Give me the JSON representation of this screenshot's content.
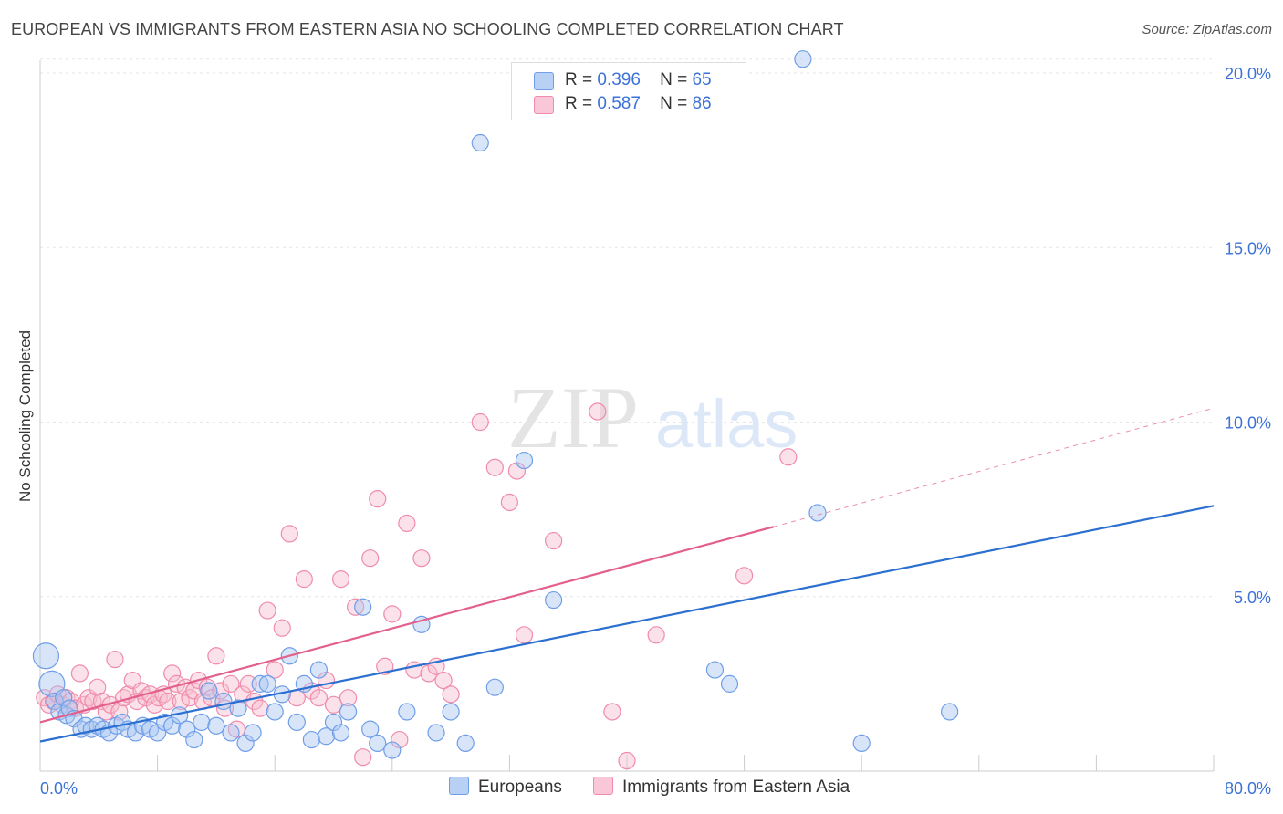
{
  "title": "EUROPEAN VS IMMIGRANTS FROM EASTERN ASIA NO SCHOOLING COMPLETED CORRELATION CHART",
  "source": "Source: ZipAtlas.com",
  "watermark": {
    "zip": "ZIP",
    "atlas": "atlas"
  },
  "colors": {
    "blue": "#6f9ee8",
    "blue_fill": "#a9c6f2",
    "blue_line": "#2b6fd1",
    "pink": "#f08bab",
    "pink_fill": "#f7bfd0",
    "pink_line": "#e3608c",
    "tick": "#3b72d8",
    "grid": "#e6e6e6"
  },
  "legend": {
    "series1": {
      "r_label": "R =",
      "r_value": "0.396",
      "n_label": "N =",
      "n_value": "65"
    },
    "series2": {
      "r_label": "R =",
      "r_value": "0.587",
      "n_label": "N =",
      "n_value": "86"
    }
  },
  "chart_data": {
    "type": "scatter",
    "title": "EUROPEAN VS IMMIGRANTS FROM EASTERN ASIA NO SCHOOLING COMPLETED CORRELATION CHART",
    "xlabel": "",
    "ylabel": "No Schooling Completed",
    "xlim": [
      0,
      80
    ],
    "ylim": [
      0,
      20
    ],
    "x_tick_labels": [
      {
        "value": 0,
        "label": "0.0%"
      },
      {
        "value": 80,
        "label": "80.0%"
      }
    ],
    "y_tick_labels": [
      {
        "value": 5,
        "label": "5.0%"
      },
      {
        "value": 10,
        "label": "10.0%"
      },
      {
        "value": 15,
        "label": "15.0%"
      },
      {
        "value": 20,
        "label": "20.0%"
      }
    ],
    "series": [
      {
        "name": "Europeans",
        "r": 0.396,
        "n": 65,
        "trend": {
          "x": [
            0,
            80
          ],
          "y": [
            0.85,
            7.6
          ]
        },
        "points": [
          [
            0.4,
            3.3
          ],
          [
            0.8,
            2.5
          ],
          [
            1.0,
            2.0
          ],
          [
            1.3,
            1.7
          ],
          [
            1.6,
            2.1
          ],
          [
            1.8,
            1.6
          ],
          [
            2.0,
            1.8
          ],
          [
            2.3,
            1.5
          ],
          [
            2.8,
            1.2
          ],
          [
            3.1,
            1.3
          ],
          [
            3.5,
            1.2
          ],
          [
            3.9,
            1.3
          ],
          [
            4.3,
            1.2
          ],
          [
            4.7,
            1.1
          ],
          [
            5.2,
            1.3
          ],
          [
            5.6,
            1.4
          ],
          [
            6.0,
            1.2
          ],
          [
            6.5,
            1.1
          ],
          [
            7.0,
            1.3
          ],
          [
            7.5,
            1.2
          ],
          [
            8.0,
            1.1
          ],
          [
            8.5,
            1.4
          ],
          [
            9.0,
            1.3
          ],
          [
            9.5,
            1.6
          ],
          [
            10.0,
            1.2
          ],
          [
            10.5,
            0.9
          ],
          [
            11.0,
            1.4
          ],
          [
            11.5,
            2.3
          ],
          [
            12.0,
            1.3
          ],
          [
            12.5,
            2.0
          ],
          [
            13.0,
            1.1
          ],
          [
            13.5,
            1.8
          ],
          [
            14.0,
            0.8
          ],
          [
            14.5,
            1.1
          ],
          [
            15.0,
            2.5
          ],
          [
            15.5,
            2.5
          ],
          [
            16.0,
            1.7
          ],
          [
            16.5,
            2.2
          ],
          [
            17.0,
            3.3
          ],
          [
            17.5,
            1.4
          ],
          [
            18.0,
            2.5
          ],
          [
            18.5,
            0.9
          ],
          [
            19.0,
            2.9
          ],
          [
            19.5,
            1.0
          ],
          [
            20.0,
            1.4
          ],
          [
            20.5,
            1.1
          ],
          [
            21.0,
            1.7
          ],
          [
            22.0,
            4.7
          ],
          [
            22.5,
            1.2
          ],
          [
            23.0,
            0.8
          ],
          [
            24.0,
            0.6
          ],
          [
            25.0,
            1.7
          ],
          [
            26.0,
            4.2
          ],
          [
            27.0,
            1.1
          ],
          [
            28.0,
            1.7
          ],
          [
            29.0,
            0.8
          ],
          [
            30.0,
            18.0
          ],
          [
            31.0,
            2.4
          ],
          [
            33.0,
            8.9
          ],
          [
            35.0,
            4.9
          ],
          [
            46.0,
            2.9
          ],
          [
            47.0,
            2.5
          ],
          [
            53.0,
            7.4
          ],
          [
            56.0,
            0.8
          ],
          [
            62.0,
            1.7
          ],
          [
            52.0,
            20.4
          ]
        ]
      },
      {
        "name": "Immigrants from Eastern Asia",
        "r": 0.587,
        "n": 86,
        "trend": {
          "x": [
            0,
            50
          ],
          "y": [
            1.4,
            7.0
          ]
        },
        "trend_ext": {
          "x": [
            50,
            80
          ],
          "y": [
            7.0,
            10.4
          ]
        },
        "points": [
          [
            0.3,
            2.1
          ],
          [
            0.6,
            1.9
          ],
          [
            0.9,
            2.0
          ],
          [
            1.2,
            2.2
          ],
          [
            1.5,
            1.9
          ],
          [
            1.8,
            2.1
          ],
          [
            2.1,
            2.0
          ],
          [
            2.4,
            1.8
          ],
          [
            2.7,
            2.8
          ],
          [
            3.0,
            1.9
          ],
          [
            3.3,
            2.1
          ],
          [
            3.6,
            2.0
          ],
          [
            3.9,
            2.4
          ],
          [
            4.2,
            2.0
          ],
          [
            4.5,
            1.7
          ],
          [
            4.8,
            1.9
          ],
          [
            5.1,
            3.2
          ],
          [
            5.4,
            1.7
          ],
          [
            5.7,
            2.1
          ],
          [
            6.0,
            2.2
          ],
          [
            6.3,
            2.6
          ],
          [
            6.6,
            2.0
          ],
          [
            6.9,
            2.3
          ],
          [
            7.2,
            2.1
          ],
          [
            7.5,
            2.2
          ],
          [
            7.8,
            1.9
          ],
          [
            8.1,
            2.1
          ],
          [
            8.4,
            2.2
          ],
          [
            8.7,
            2.0
          ],
          [
            9.0,
            2.8
          ],
          [
            9.3,
            2.5
          ],
          [
            9.6,
            2.0
          ],
          [
            9.9,
            2.4
          ],
          [
            10.2,
            2.1
          ],
          [
            10.5,
            2.3
          ],
          [
            10.8,
            2.6
          ],
          [
            11.1,
            2.0
          ],
          [
            11.4,
            2.4
          ],
          [
            11.7,
            2.1
          ],
          [
            12.0,
            3.3
          ],
          [
            12.3,
            2.3
          ],
          [
            12.6,
            1.8
          ],
          [
            13.0,
            2.5
          ],
          [
            13.4,
            1.2
          ],
          [
            13.8,
            2.2
          ],
          [
            14.2,
            2.5
          ],
          [
            14.6,
            2.0
          ],
          [
            15.0,
            1.8
          ],
          [
            15.5,
            4.6
          ],
          [
            16.0,
            2.9
          ],
          [
            16.5,
            4.1
          ],
          [
            17.0,
            6.8
          ],
          [
            17.5,
            2.1
          ],
          [
            18.0,
            5.5
          ],
          [
            18.5,
            2.3
          ],
          [
            19.0,
            2.1
          ],
          [
            19.5,
            2.6
          ],
          [
            20.0,
            1.9
          ],
          [
            20.5,
            5.5
          ],
          [
            21.0,
            2.1
          ],
          [
            21.5,
            4.7
          ],
          [
            22.0,
            0.4
          ],
          [
            22.5,
            6.1
          ],
          [
            23.0,
            7.8
          ],
          [
            23.5,
            3.0
          ],
          [
            24.0,
            4.5
          ],
          [
            24.5,
            0.9
          ],
          [
            25.0,
            7.1
          ],
          [
            25.5,
            2.9
          ],
          [
            26.0,
            6.1
          ],
          [
            26.5,
            2.8
          ],
          [
            27.0,
            3.0
          ],
          [
            27.5,
            2.6
          ],
          [
            28.0,
            2.2
          ],
          [
            30.0,
            10.0
          ],
          [
            31.0,
            8.7
          ],
          [
            32.0,
            7.7
          ],
          [
            32.5,
            8.6
          ],
          [
            33.0,
            3.9
          ],
          [
            35.0,
            6.6
          ],
          [
            38.0,
            10.3
          ],
          [
            39.0,
            1.7
          ],
          [
            40.0,
            0.3
          ],
          [
            42.0,
            3.9
          ],
          [
            48.0,
            5.6
          ],
          [
            51.0,
            9.0
          ]
        ]
      }
    ]
  },
  "bottom_legend": {
    "series1": "Europeans",
    "series2": "Immigrants from Eastern Asia"
  }
}
